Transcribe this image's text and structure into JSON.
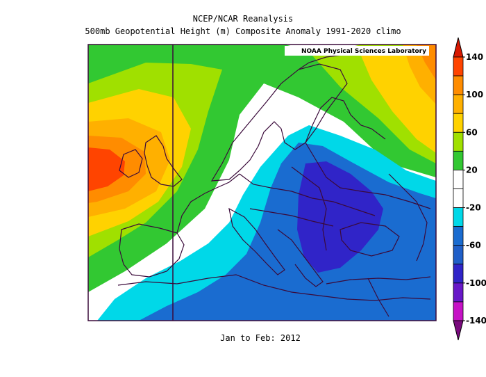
{
  "header": {
    "source": "NCEP/NCAR Reanalysis",
    "subtitle": "500mb Geopotential Height (m) Composite Anomaly 1991-2020 climo"
  },
  "period": "Jan to Feb: 2012",
  "credit": "NOAA Physical Sciences Laboratory",
  "colorbar": {
    "labels": [
      "140",
      "100",
      "60",
      "20",
      "-20",
      "-60",
      "-100",
      "-140"
    ],
    "bins": [
      {
        "color": "#7a0a7e",
        "range": "< -140"
      },
      {
        "color": "#c612c6",
        "range": "-140 to -120"
      },
      {
        "color": "#6818c8",
        "range": "-120 to -100"
      },
      {
        "color": "#3024c8",
        "range": "-100 to -80"
      },
      {
        "color": "#205fc8",
        "range": "-80 to -60"
      },
      {
        "color": "#1a6cd0",
        "range": "-60 to -40"
      },
      {
        "color": "#00d8e8",
        "range": "-40 to -20"
      },
      {
        "color": "#ffffff",
        "range": "-20 to 0"
      },
      {
        "color": "#ffffff",
        "range": "0 to 20"
      },
      {
        "color": "#32c832",
        "range": "20 to 40"
      },
      {
        "color": "#a0e000",
        "range": "40 to 60"
      },
      {
        "color": "#ffd200",
        "range": "60 to 80"
      },
      {
        "color": "#ffb000",
        "range": "80 to 100"
      },
      {
        "color": "#ff8c00",
        "range": "100 to 120"
      },
      {
        "color": "#ff4400",
        "range": "120 to 140"
      },
      {
        "color": "#d81800",
        "range": "> 140"
      }
    ]
  }
}
